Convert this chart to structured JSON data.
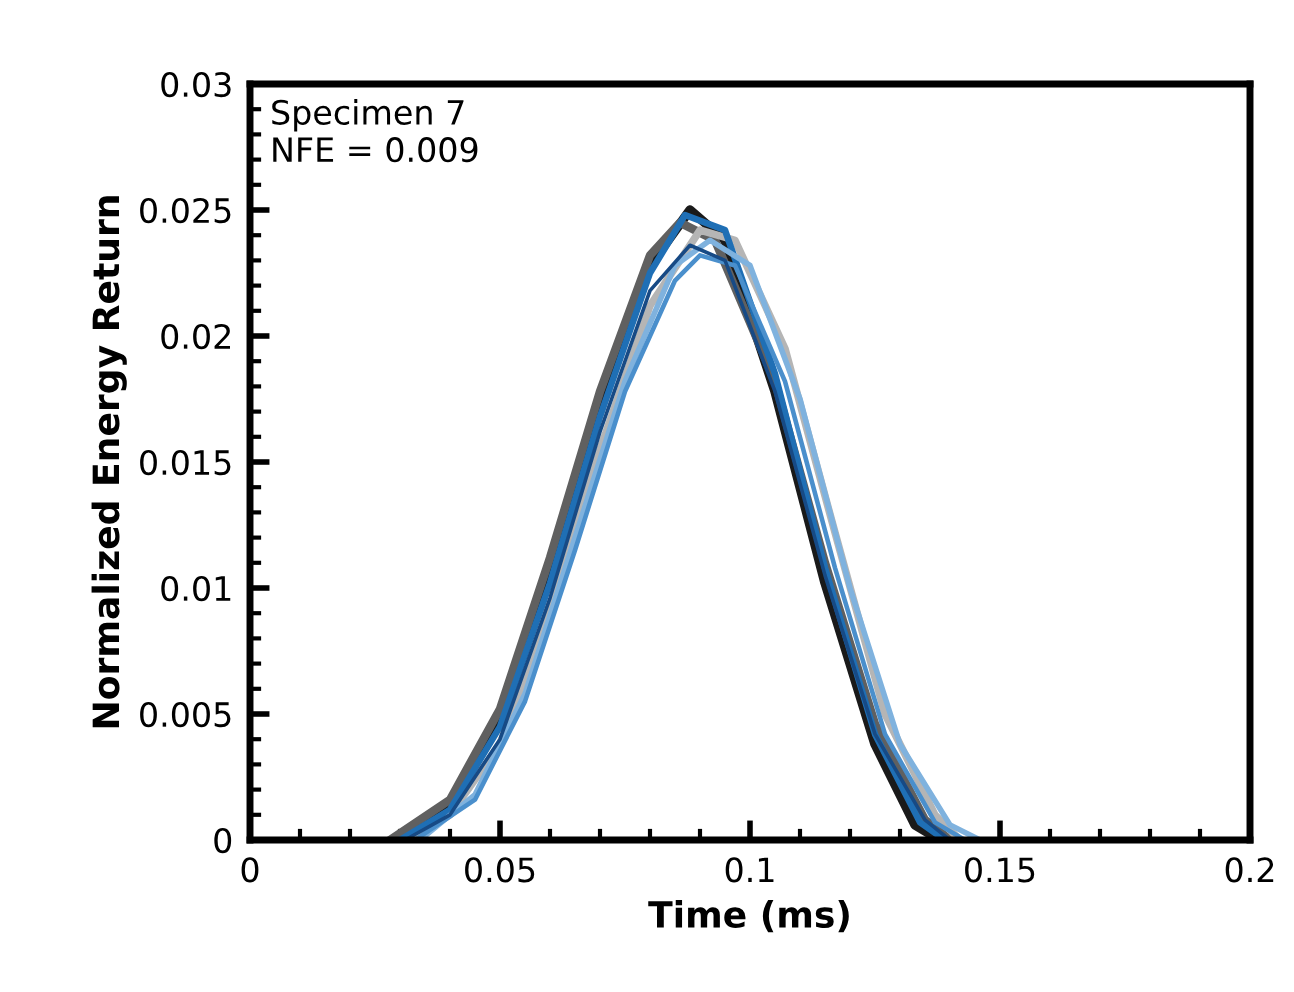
{
  "chart_data": {
    "type": "line",
    "xlabel": "Time (ms)",
    "ylabel": "Normalized Energy Return",
    "annotations": [
      "Specimen 7\nNFE = 0.009"
    ],
    "xlim": [
      0,
      0.2
    ],
    "xticks": [
      0,
      0.05,
      0.1,
      0.15,
      0.2
    ],
    "ylim": [
      0,
      0.03
    ],
    "yticks": [
      0,
      0.005,
      0.01,
      0.015,
      0.02,
      0.025,
      0.03
    ],
    "grid": false,
    "legend": false,
    "marker": "none",
    "line_style": "solid",
    "series": [
      {
        "color": "#1a1a1a",
        "x": [
          0.029,
          0.04,
          0.05,
          0.06,
          0.07,
          0.08,
          0.088,
          0.095,
          0.105,
          0.115,
          0.125,
          0.133,
          0.138
        ],
        "values": [
          0,
          0.0014,
          0.0048,
          0.0108,
          0.0172,
          0.0228,
          0.025,
          0.0238,
          0.0178,
          0.0102,
          0.0038,
          0.0006,
          0
        ]
      },
      {
        "color": "#606060",
        "x": [
          0.028,
          0.04,
          0.05,
          0.06,
          0.07,
          0.08,
          0.086,
          0.093,
          0.105,
          0.115,
          0.125,
          0.135,
          0.14
        ],
        "values": [
          0,
          0.0016,
          0.0052,
          0.0112,
          0.0178,
          0.0232,
          0.0245,
          0.0238,
          0.0182,
          0.011,
          0.0046,
          0.0008,
          0
        ]
      },
      {
        "color": "#b5b5b5",
        "x": [
          0.032,
          0.04,
          0.05,
          0.06,
          0.07,
          0.08,
          0.09,
          0.097,
          0.107,
          0.117,
          0.127,
          0.137,
          0.142
        ],
        "values": [
          0,
          0.001,
          0.0038,
          0.0092,
          0.0155,
          0.0212,
          0.0242,
          0.0238,
          0.0195,
          0.0122,
          0.005,
          0.001,
          0
        ]
      },
      {
        "color": "#1f6fb5",
        "x": [
          0.03,
          0.04,
          0.05,
          0.06,
          0.07,
          0.08,
          0.087,
          0.095,
          0.105,
          0.115,
          0.125,
          0.134,
          0.139
        ],
        "values": [
          0,
          0.0012,
          0.0045,
          0.0102,
          0.0168,
          0.0225,
          0.0248,
          0.0242,
          0.0185,
          0.0108,
          0.0042,
          0.0007,
          0
        ]
      },
      {
        "color": "#7fb2de",
        "x": [
          0.034,
          0.045,
          0.055,
          0.065,
          0.075,
          0.085,
          0.092,
          0.1,
          0.11,
          0.12,
          0.13,
          0.14,
          0.146
        ],
        "values": [
          0,
          0.0018,
          0.0058,
          0.012,
          0.0182,
          0.0228,
          0.0238,
          0.0228,
          0.0175,
          0.01,
          0.0038,
          0.0006,
          0
        ]
      },
      {
        "color": "#4a8fcc",
        "x": [
          0.033,
          0.045,
          0.055,
          0.065,
          0.075,
          0.085,
          0.09,
          0.097,
          0.107,
          0.117,
          0.127,
          0.137,
          0.143
        ],
        "values": [
          0,
          0.0016,
          0.0055,
          0.0115,
          0.0178,
          0.0222,
          0.0232,
          0.0228,
          0.0182,
          0.0108,
          0.0042,
          0.0007,
          0
        ]
      },
      {
        "color": "#174a85",
        "x": [
          0.031,
          0.04,
          0.05,
          0.06,
          0.07,
          0.08,
          0.088,
          0.095,
          0.105,
          0.115,
          0.125,
          0.135,
          0.14
        ],
        "values": [
          0,
          0.001,
          0.004,
          0.0096,
          0.0162,
          0.0218,
          0.0236,
          0.023,
          0.0178,
          0.0105,
          0.0042,
          0.0008,
          0
        ]
      }
    ]
  }
}
